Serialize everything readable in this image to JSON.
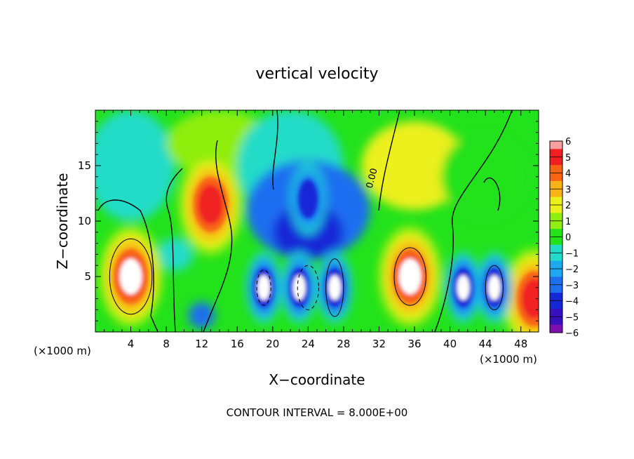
{
  "chart_data": {
    "type": "heatmap",
    "title": "vertical velocity",
    "xlabel": "X−coordinate",
    "ylabel": "Z−coordinate",
    "x_unit_left": "(×1000 m)",
    "x_unit_right": "(×1000 m)",
    "footer": "CONTOUR INTERVAL = 8.000E+00",
    "contour_label": "0.00",
    "xlim": [
      0,
      50
    ],
    "ylim": [
      0,
      20
    ],
    "x_ticks": [
      4,
      8,
      12,
      16,
      20,
      24,
      28,
      32,
      36,
      40,
      44,
      48
    ],
    "y_ticks": [
      5,
      10,
      15
    ],
    "colorbar": {
      "labels": [
        "6",
        "5",
        "4",
        "3",
        "2",
        "1",
        "0",
        "−1",
        "−2",
        "−3",
        "−4",
        "−5",
        "−6"
      ],
      "range": [
        -6,
        6
      ]
    },
    "features": [
      {
        "kind": "updraft",
        "x": 4,
        "z": 5,
        "value": 6
      },
      {
        "kind": "updraft",
        "x": 13,
        "z": 11.5,
        "value": 5
      },
      {
        "kind": "updraft",
        "x": 35.5,
        "z": 5,
        "value": 6
      },
      {
        "kind": "updraft",
        "x": 49.5,
        "z": 3,
        "value": 5
      },
      {
        "kind": "downdraft",
        "x": 19,
        "z": 4,
        "value": -6
      },
      {
        "kind": "downdraft",
        "x": 23,
        "z": 4,
        "value": -6
      },
      {
        "kind": "downdraft",
        "x": 27,
        "z": 4,
        "value": -6
      },
      {
        "kind": "downdraft",
        "x": 41.5,
        "z": 4,
        "value": -6
      },
      {
        "kind": "downdraft",
        "x": 45,
        "z": 4,
        "value": -6
      },
      {
        "kind": "downdraft",
        "x": 24,
        "z": 12,
        "value": -4
      }
    ]
  }
}
